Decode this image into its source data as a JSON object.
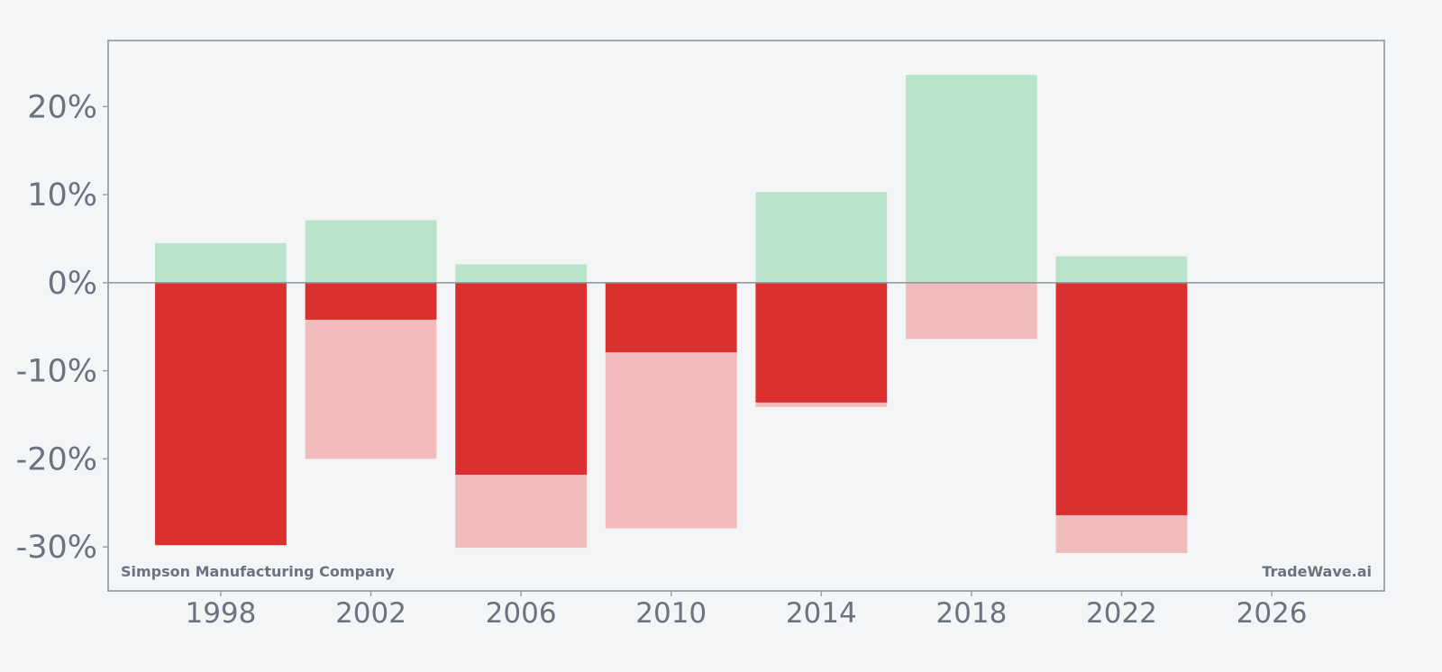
{
  "chart_data": {
    "type": "bar",
    "x": [
      1998,
      2002,
      2006,
      2010,
      2014,
      2018,
      2022
    ],
    "x_ticks": [
      1998,
      2002,
      2006,
      2010,
      2014,
      2018,
      2022,
      2026
    ],
    "x_tick_labels": [
      "1998",
      "2002",
      "2006",
      "2010",
      "2014",
      "2018",
      "2022",
      "2026"
    ],
    "xlim": [
      1995,
      2029
    ],
    "ylim": [
      -35,
      27.5
    ],
    "y_ticks": [
      -30,
      -20,
      -10,
      0,
      10,
      20
    ],
    "y_tick_labels": [
      "-30%",
      "-20%",
      "-10%",
      "0%",
      "10%",
      "20%"
    ],
    "series": [
      {
        "values": [
          4.5,
          7.1,
          2.1,
          0.0,
          10.3,
          23.6,
          3.0
        ],
        "color": "#b9e4c9"
      },
      {
        "values": [
          -29.8,
          -20.0,
          -30.1,
          -27.9,
          -14.1,
          -6.4,
          -30.7
        ],
        "color": "#f3bcbc"
      },
      {
        "values": [
          -29.8,
          -4.2,
          -21.8,
          -7.9,
          -13.6,
          0.0,
          -26.4
        ],
        "color": "#dc2f30"
      }
    ],
    "grid": false,
    "zero_line": true,
    "title": "",
    "xlabel": "",
    "ylabel": ""
  },
  "watermark_left": "Simpson Manufacturing Company",
  "watermark_right": "TradeWave.ai",
  "colors": {
    "background": "#f4f5f7",
    "frame": "#9ca0ab",
    "zero_line": "#8e939c",
    "text": "#6b7280"
  }
}
